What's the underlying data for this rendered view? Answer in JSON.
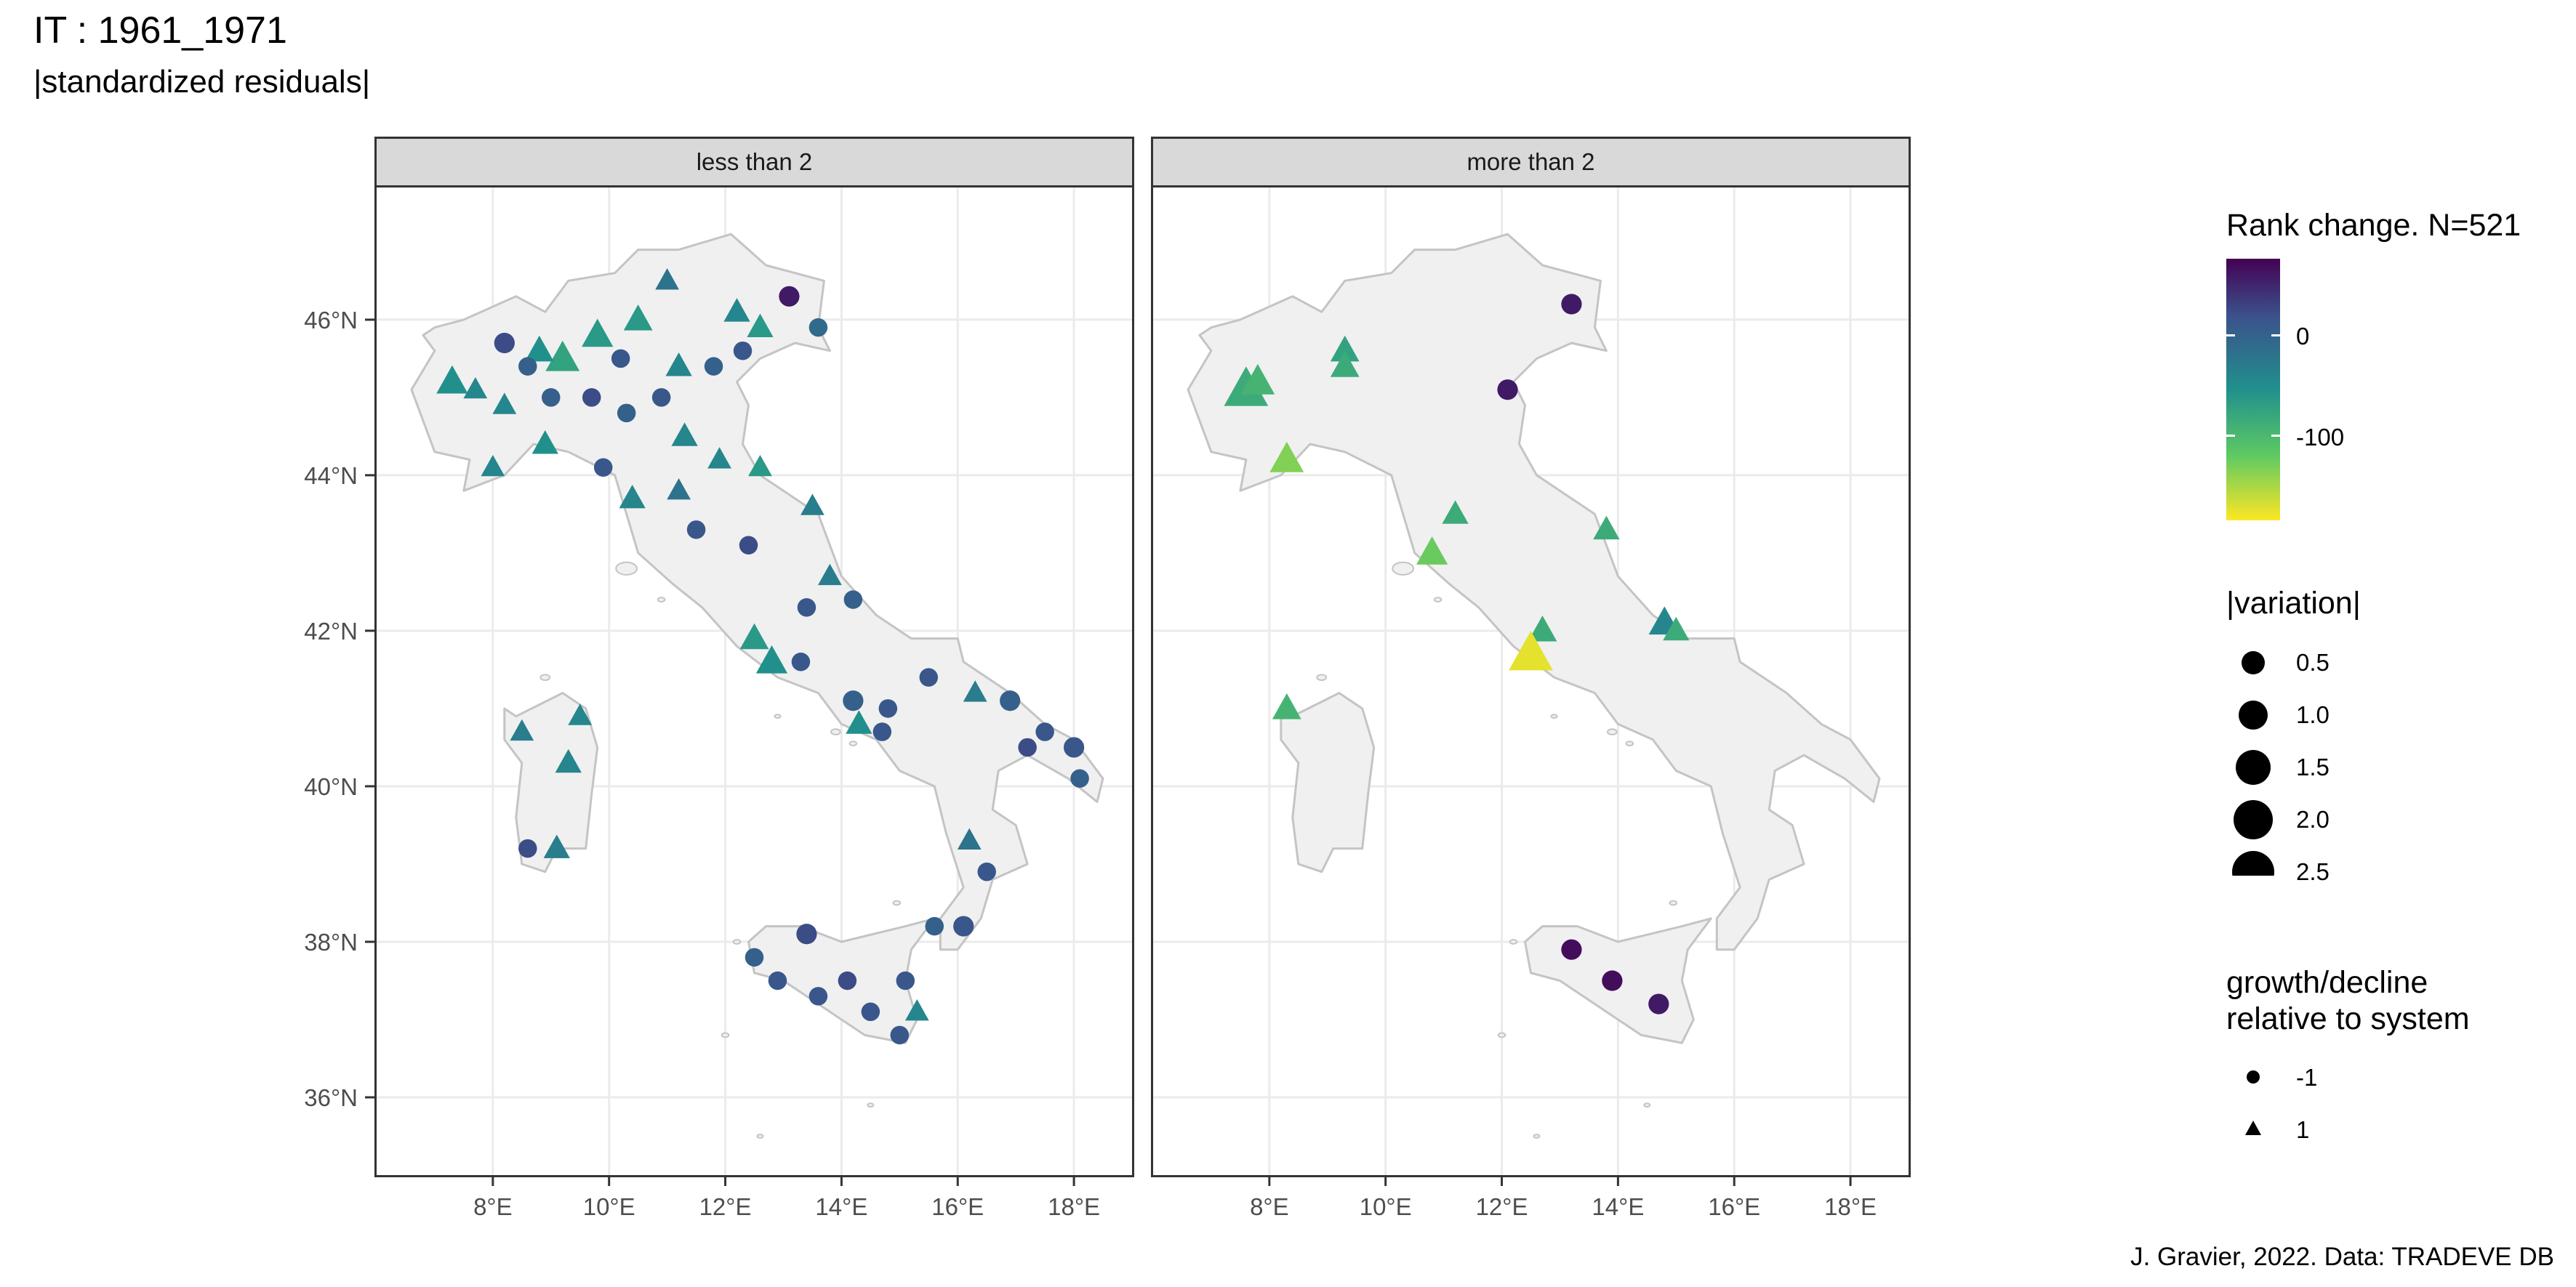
{
  "title": "IT : 1961_1971",
  "subtitle": "|standardized residuals|",
  "caption": "J. Gravier, 2022. Data: TRADEVE DB",
  "panels": [
    {
      "strip_label": "less than 2"
    },
    {
      "strip_label": "more than 2"
    }
  ],
  "axes": {
    "y_ticks": [
      "46°N",
      "44°N",
      "42°N",
      "40°N",
      "38°N",
      "36°N"
    ],
    "y_values": [
      46,
      44,
      42,
      40,
      38,
      36
    ],
    "x_ticks": [
      "8°E",
      "10°E",
      "12°E",
      "14°E",
      "16°E",
      "18°E"
    ],
    "x_values": [
      8,
      10,
      12,
      14,
      16,
      18
    ],
    "lon_range": [
      6.0,
      19.0
    ],
    "lat_range": [
      35.0,
      47.7
    ]
  },
  "legend": {
    "color_title": "Rank change. N=521",
    "color_labels": [
      "0",
      "-100"
    ],
    "color_values": [
      0,
      -100
    ],
    "color_range": [
      -180,
      80
    ],
    "size_title": "|variation|",
    "size_labels": [
      "0.5",
      "1.0",
      "1.5",
      "2.0",
      "2.5"
    ],
    "shape_title_line1": "growth/decline",
    "shape_title_line2": "relative to system",
    "shape_labels": [
      "-1",
      "1"
    ]
  },
  "map_colors": {
    "land": "#f0f0f0",
    "coast": "#c4c4c4",
    "grid": "#ebebeb",
    "viridis": [
      "#440154",
      "#3b528b",
      "#21908d",
      "#5dc963",
      "#fde725"
    ]
  },
  "chart_data": {
    "type": "scatter",
    "panels": [
      {
        "name": "less than 2",
        "points": [
          [
            13.1,
            46.3,
            -1,
            60,
            1.2
          ],
          [
            12.2,
            46.1,
            1,
            -40,
            1.2
          ],
          [
            11.0,
            46.5,
            1,
            -20,
            1.0
          ],
          [
            10.5,
            46.0,
            1,
            -60,
            1.4
          ],
          [
            9.8,
            45.8,
            1,
            -60,
            1.6
          ],
          [
            9.2,
            45.5,
            1,
            -70,
            1.8
          ],
          [
            8.8,
            45.6,
            1,
            -50,
            1.4
          ],
          [
            8.2,
            45.7,
            -1,
            20,
            1.2
          ],
          [
            7.7,
            45.1,
            1,
            -40,
            1.0
          ],
          [
            7.3,
            45.2,
            1,
            -50,
            1.6
          ],
          [
            8.6,
            45.4,
            -1,
            0,
            1.0
          ],
          [
            10.2,
            45.5,
            -1,
            10,
            1.0
          ],
          [
            11.2,
            45.4,
            1,
            -40,
            1.2
          ],
          [
            11.8,
            45.4,
            -1,
            0,
            1.0
          ],
          [
            12.3,
            45.6,
            -1,
            10,
            1.0
          ],
          [
            13.6,
            45.9,
            -1,
            -10,
            1.0
          ],
          [
            12.6,
            45.9,
            1,
            -60,
            1.2
          ],
          [
            10.9,
            45.0,
            -1,
            10,
            1.0
          ],
          [
            11.3,
            44.5,
            1,
            -40,
            1.2
          ],
          [
            10.3,
            44.8,
            -1,
            0,
            1.0
          ],
          [
            9.7,
            45.0,
            -1,
            20,
            1.0
          ],
          [
            9.0,
            45.0,
            -1,
            0,
            1.0
          ],
          [
            8.2,
            44.9,
            1,
            -40,
            1.0
          ],
          [
            8.9,
            44.4,
            1,
            -50,
            1.2
          ],
          [
            8.0,
            44.1,
            1,
            -40,
            1.0
          ],
          [
            9.9,
            44.1,
            -1,
            10,
            1.0
          ],
          [
            10.4,
            43.7,
            1,
            -40,
            1.2
          ],
          [
            11.2,
            43.8,
            1,
            -20,
            1.0
          ],
          [
            11.9,
            44.2,
            1,
            -40,
            1.0
          ],
          [
            12.6,
            44.1,
            1,
            -60,
            1.0
          ],
          [
            13.5,
            43.6,
            1,
            -30,
            1.0
          ],
          [
            12.4,
            43.1,
            -1,
            20,
            1.0
          ],
          [
            11.5,
            43.3,
            -1,
            10,
            1.0
          ],
          [
            13.8,
            42.7,
            1,
            -30,
            1.0
          ],
          [
            14.2,
            42.4,
            -1,
            0,
            1.0
          ],
          [
            13.4,
            42.3,
            -1,
            10,
            1.0
          ],
          [
            12.5,
            41.9,
            1,
            -60,
            1.4
          ],
          [
            12.8,
            41.6,
            1,
            -50,
            1.6
          ],
          [
            13.3,
            41.6,
            -1,
            10,
            1.0
          ],
          [
            14.2,
            41.1,
            -1,
            0,
            1.2
          ],
          [
            14.8,
            41.0,
            -1,
            10,
            1.0
          ],
          [
            15.5,
            41.4,
            -1,
            10,
            1.0
          ],
          [
            16.3,
            41.2,
            1,
            -30,
            1.0
          ],
          [
            16.9,
            41.1,
            -1,
            0,
            1.2
          ],
          [
            17.5,
            40.7,
            -1,
            10,
            1.0
          ],
          [
            18.0,
            40.5,
            -1,
            10,
            1.2
          ],
          [
            18.1,
            40.1,
            -1,
            0,
            1.0
          ],
          [
            17.2,
            40.5,
            -1,
            20,
            1.0
          ],
          [
            16.2,
            39.3,
            1,
            -20,
            1.0
          ],
          [
            16.5,
            38.9,
            -1,
            10,
            1.0
          ],
          [
            16.1,
            38.2,
            -1,
            10,
            1.2
          ],
          [
            15.6,
            38.2,
            -1,
            0,
            1.0
          ],
          [
            13.4,
            38.1,
            -1,
            20,
            1.2
          ],
          [
            12.5,
            37.8,
            -1,
            0,
            1.0
          ],
          [
            12.9,
            37.5,
            -1,
            10,
            1.0
          ],
          [
            13.6,
            37.3,
            -1,
            10,
            1.0
          ],
          [
            14.1,
            37.5,
            -1,
            20,
            1.0
          ],
          [
            14.5,
            37.1,
            -1,
            10,
            1.0
          ],
          [
            15.1,
            37.5,
            -1,
            10,
            1.0
          ],
          [
            15.3,
            37.1,
            1,
            -40,
            1.0
          ],
          [
            15.0,
            36.8,
            -1,
            10,
            1.0
          ],
          [
            9.1,
            39.2,
            1,
            -30,
            1.2
          ],
          [
            8.5,
            40.7,
            1,
            -30,
            1.0
          ],
          [
            9.5,
            40.9,
            1,
            -40,
            1.0
          ],
          [
            8.6,
            39.2,
            -1,
            20,
            1.0
          ],
          [
            9.3,
            40.3,
            1,
            -40,
            1.2
          ],
          [
            14.3,
            40.8,
            1,
            -50,
            1.2
          ],
          [
            14.7,
            40.7,
            -1,
            10,
            1.0
          ]
        ]
      },
      {
        "name": "more than 2",
        "points": [
          [
            7.6,
            45.1,
            1,
            -80,
            2.6
          ],
          [
            7.8,
            45.2,
            1,
            -90,
            1.8
          ],
          [
            8.3,
            44.2,
            1,
            -130,
            1.8
          ],
          [
            9.3,
            45.6,
            1,
            -70,
            1.4
          ],
          [
            9.3,
            45.4,
            1,
            -80,
            1.4
          ],
          [
            13.2,
            46.2,
            -1,
            60,
            1.2
          ],
          [
            12.1,
            45.1,
            -1,
            60,
            1.2
          ],
          [
            11.2,
            43.5,
            1,
            -80,
            1.2
          ],
          [
            10.8,
            43.0,
            1,
            -120,
            1.6
          ],
          [
            13.8,
            43.3,
            1,
            -80,
            1.2
          ],
          [
            12.7,
            42.0,
            1,
            -80,
            1.4
          ],
          [
            12.5,
            41.7,
            1,
            -170,
            2.6
          ],
          [
            14.8,
            42.1,
            1,
            -40,
            1.6
          ],
          [
            15.0,
            42.0,
            1,
            -80,
            1.2
          ],
          [
            8.3,
            41.0,
            1,
            -90,
            1.4
          ],
          [
            13.2,
            37.9,
            -1,
            70,
            1.2
          ],
          [
            13.9,
            37.5,
            -1,
            70,
            1.2
          ],
          [
            14.7,
            37.2,
            -1,
            60,
            1.2
          ]
        ]
      }
    ]
  }
}
